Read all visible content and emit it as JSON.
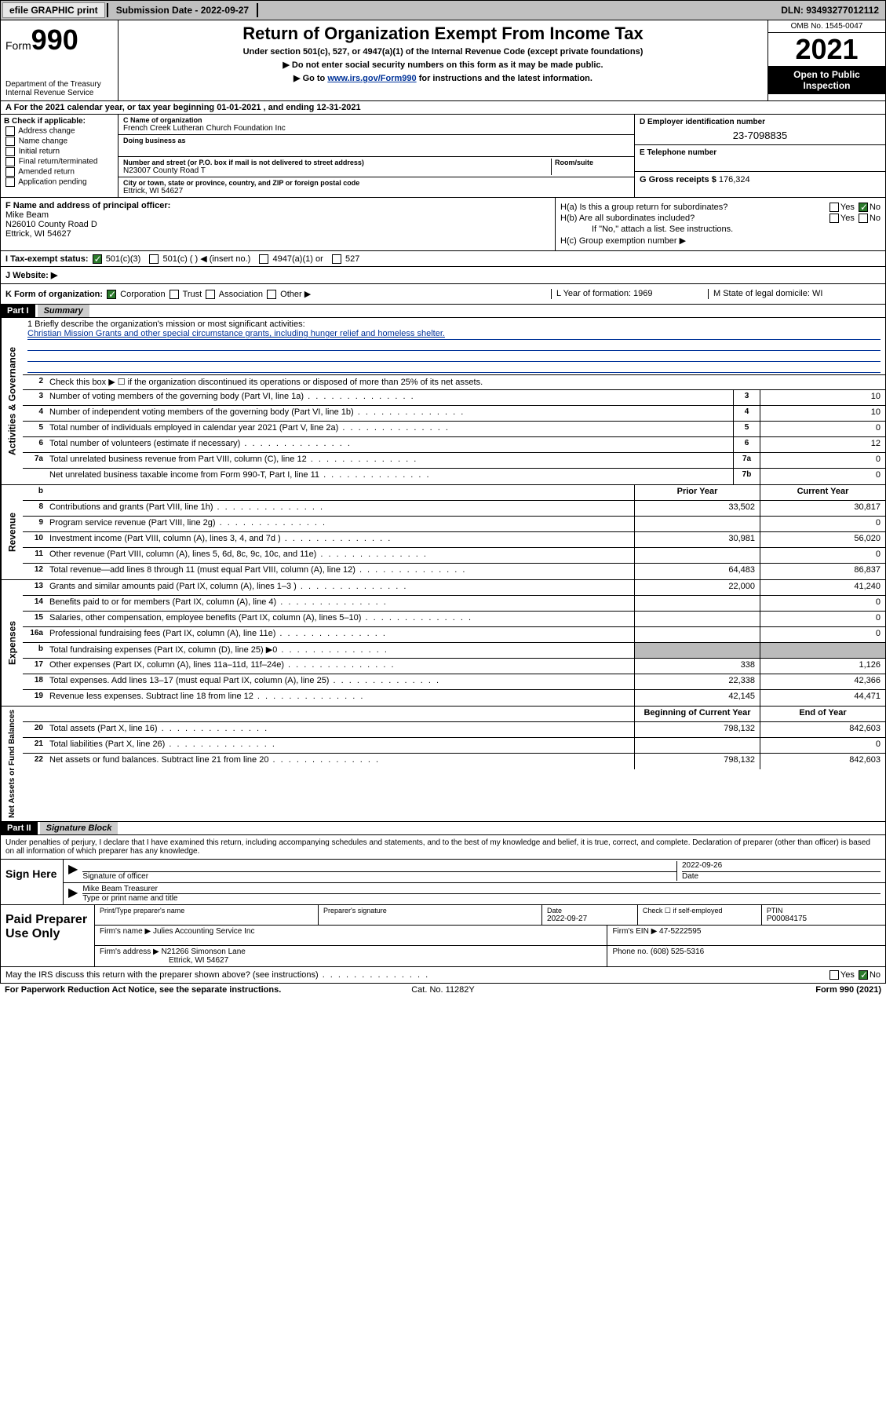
{
  "topbar": {
    "efile": "efile GRAPHIC print",
    "submission_label": "Submission Date - ",
    "submission_date": "2022-09-27",
    "dln_label": "DLN: ",
    "dln": "93493277012112"
  },
  "header": {
    "form_label": "Form",
    "form_number": "990",
    "dept": "Department of the Treasury\nInternal Revenue Service",
    "title": "Return of Organization Exempt From Income Tax",
    "subtitle": "Under section 501(c), 527, or 4947(a)(1) of the Internal Revenue Code (except private foundations)",
    "arrow1": "▶ Do not enter social security numbers on this form as it may be made public.",
    "arrow2_pre": "▶ Go to ",
    "arrow2_link": "www.irs.gov/Form990",
    "arrow2_post": " for instructions and the latest information.",
    "omb": "OMB No. 1545-0047",
    "year": "2021",
    "open": "Open to Public Inspection"
  },
  "row_a": "A For the 2021 calendar year, or tax year beginning 01-01-2021   , and ending 12-31-2021",
  "col_b": {
    "header": "B Check if applicable:",
    "items": [
      "Address change",
      "Name change",
      "Initial return",
      "Final return/terminated",
      "Amended return",
      "Application pending"
    ]
  },
  "col_c": {
    "name_label": "C Name of organization",
    "name": "French Creek Lutheran Church Foundation Inc",
    "dba_label": "Doing business as",
    "dba": "",
    "addr_label": "Number and street (or P.O. box if mail is not delivered to street address)",
    "room_label": "Room/suite",
    "addr": "N23007 County Road T",
    "city_label": "City or town, state or province, country, and ZIP or foreign postal code",
    "city": "Ettrick, WI  54627"
  },
  "col_de": {
    "d_label": "D Employer identification number",
    "d_value": "23-7098835",
    "e_label": "E Telephone number",
    "e_value": "",
    "g_label": "G Gross receipts $ ",
    "g_value": "176,324"
  },
  "row_f": {
    "label": "F Name and address of principal officer:",
    "name": "Mike Beam",
    "addr": "N26010 County Road D",
    "city": "Ettrick, WI  54627"
  },
  "col_h": {
    "ha": "H(a)  Is this a group return for subordinates?",
    "hb": "H(b)  Are all subordinates included?",
    "hb_note": "If \"No,\" attach a list. See instructions.",
    "hc": "H(c)  Group exemption number ▶",
    "yes": "Yes",
    "no": "No"
  },
  "row_i": {
    "label": "I   Tax-exempt status:",
    "opts": [
      "501(c)(3)",
      "501(c) (   ) ◀ (insert no.)",
      "4947(a)(1) or",
      "527"
    ]
  },
  "row_j": {
    "label": "J   Website: ▶"
  },
  "row_k": {
    "label": "K Form of organization:",
    "opts": [
      "Corporation",
      "Trust",
      "Association",
      "Other ▶"
    ],
    "l": "L Year of formation: 1969",
    "m": "M State of legal domicile: WI"
  },
  "part1": {
    "label": "Part I",
    "title": "Summary"
  },
  "mission": {
    "label": "1  Briefly describe the organization's mission or most significant activities:",
    "text": "Christian Mission Grants and other special circumstance grants, including hunger relief and homeless shelter."
  },
  "line2": "Check this box ▶ ☐  if the organization discontinued its operations or disposed of more than 25% of its net assets.",
  "summary_rows": [
    {
      "n": "3",
      "d": "Number of voting members of the governing body (Part VI, line 1a)",
      "box": "3",
      "v": "10"
    },
    {
      "n": "4",
      "d": "Number of independent voting members of the governing body (Part VI, line 1b)",
      "box": "4",
      "v": "10"
    },
    {
      "n": "5",
      "d": "Total number of individuals employed in calendar year 2021 (Part V, line 2a)",
      "box": "5",
      "v": "0"
    },
    {
      "n": "6",
      "d": "Total number of volunteers (estimate if necessary)",
      "box": "6",
      "v": "12"
    },
    {
      "n": "7a",
      "d": "Total unrelated business revenue from Part VIII, column (C), line 12",
      "box": "7a",
      "v": "0"
    },
    {
      "n": "",
      "d": "Net unrelated business taxable income from Form 990-T, Part I, line 11",
      "box": "7b",
      "v": "0"
    }
  ],
  "twocol_header": {
    "prior": "Prior Year",
    "current": "Current Year",
    "begin": "Beginning of Current Year",
    "end": "End of Year"
  },
  "revenue_rows": [
    {
      "n": "8",
      "d": "Contributions and grants (Part VIII, line 1h)",
      "p": "33,502",
      "c": "30,817"
    },
    {
      "n": "9",
      "d": "Program service revenue (Part VIII, line 2g)",
      "p": "",
      "c": "0"
    },
    {
      "n": "10",
      "d": "Investment income (Part VIII, column (A), lines 3, 4, and 7d )",
      "p": "30,981",
      "c": "56,020"
    },
    {
      "n": "11",
      "d": "Other revenue (Part VIII, column (A), lines 5, 6d, 8c, 9c, 10c, and 11e)",
      "p": "",
      "c": "0"
    },
    {
      "n": "12",
      "d": "Total revenue—add lines 8 through 11 (must equal Part VIII, column (A), line 12)",
      "p": "64,483",
      "c": "86,837"
    }
  ],
  "expense_rows": [
    {
      "n": "13",
      "d": "Grants and similar amounts paid (Part IX, column (A), lines 1–3 )",
      "p": "22,000",
      "c": "41,240"
    },
    {
      "n": "14",
      "d": "Benefits paid to or for members (Part IX, column (A), line 4)",
      "p": "",
      "c": "0"
    },
    {
      "n": "15",
      "d": "Salaries, other compensation, employee benefits (Part IX, column (A), lines 5–10)",
      "p": "",
      "c": "0"
    },
    {
      "n": "16a",
      "d": "Professional fundraising fees (Part IX, column (A), line 11e)",
      "p": "",
      "c": "0"
    },
    {
      "n": "b",
      "d": "Total fundraising expenses (Part IX, column (D), line 25) ▶0",
      "p": "shade",
      "c": "shade"
    },
    {
      "n": "17",
      "d": "Other expenses (Part IX, column (A), lines 11a–11d, 11f–24e)",
      "p": "338",
      "c": "1,126"
    },
    {
      "n": "18",
      "d": "Total expenses. Add lines 13–17 (must equal Part IX, column (A), line 25)",
      "p": "22,338",
      "c": "42,366"
    },
    {
      "n": "19",
      "d": "Revenue less expenses. Subtract line 18 from line 12",
      "p": "42,145",
      "c": "44,471"
    }
  ],
  "net_rows": [
    {
      "n": "20",
      "d": "Total assets (Part X, line 16)",
      "p": "798,132",
      "c": "842,603"
    },
    {
      "n": "21",
      "d": "Total liabilities (Part X, line 26)",
      "p": "",
      "c": "0"
    },
    {
      "n": "22",
      "d": "Net assets or fund balances. Subtract line 21 from line 20",
      "p": "798,132",
      "c": "842,603"
    }
  ],
  "sections": {
    "activities": "Activities & Governance",
    "revenue": "Revenue",
    "expenses": "Expenses",
    "net": "Net Assets or Fund Balances"
  },
  "part2": {
    "label": "Part II",
    "title": "Signature Block",
    "decl": "Under penalties of perjury, I declare that I have examined this return, including accompanying schedules and statements, and to the best of my knowledge and belief, it is true, correct, and complete. Declaration of preparer (other than officer) is based on all information of which preparer has any knowledge."
  },
  "sign": {
    "here": "Sign Here",
    "sig_label": "Signature of officer",
    "date_label": "Date",
    "date": "2022-09-26",
    "name": "Mike Beam Treasurer",
    "name_label": "Type or print name and title"
  },
  "prep": {
    "here": "Paid Preparer Use Only",
    "c1": "Print/Type preparer's name",
    "c2": "Preparer's signature",
    "c3_lbl": "Date",
    "c3": "2022-09-27",
    "c4_lbl": "Check ☐ if self-employed",
    "c5_lbl": "PTIN",
    "c5": "P00084175",
    "firm_name_lbl": "Firm's name    ▶ ",
    "firm_name": "Julies Accounting Service Inc",
    "firm_ein_lbl": "Firm's EIN ▶ ",
    "firm_ein": "47-5222595",
    "firm_addr_lbl": "Firm's address ▶ ",
    "firm_addr": "N21266 Simonson Lane",
    "firm_city": "Ettrick, WI  54627",
    "phone_lbl": "Phone no. ",
    "phone": "(608) 525-5316"
  },
  "discuss": {
    "q": "May the IRS discuss this return with the preparer shown above? (see instructions)",
    "yes": "Yes",
    "no": "No"
  },
  "bottom": {
    "l": "For Paperwork Reduction Act Notice, see the separate instructions.",
    "m": "Cat. No. 11282Y",
    "r": "Form 990 (2021)"
  },
  "colors": {
    "link": "#003399",
    "checked": "#2b7a2b",
    "shade": "#bbbbbb"
  }
}
